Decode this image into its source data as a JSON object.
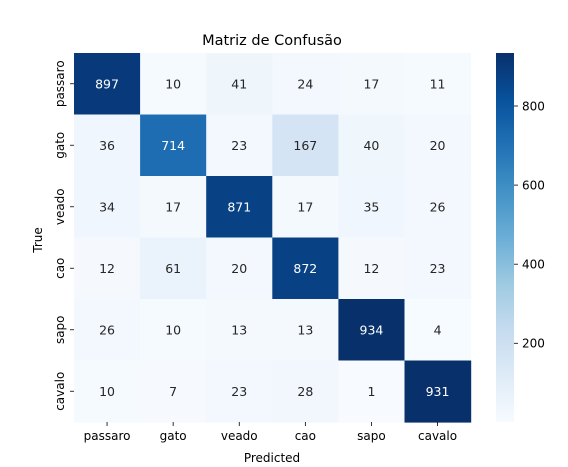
{
  "chart_data": {
    "type": "heatmap",
    "title": "Matriz de Confusão",
    "xlabel": "Predicted",
    "ylabel": "True",
    "x_categories": [
      "passaro",
      "gato",
      "veado",
      "cao",
      "sapo",
      "cavalo"
    ],
    "y_categories": [
      "passaro",
      "gato",
      "veado",
      "cao",
      "sapo",
      "cavalo"
    ],
    "values": [
      [
        897,
        10,
        41,
        24,
        17,
        11
      ],
      [
        36,
        714,
        23,
        167,
        40,
        20
      ],
      [
        34,
        17,
        871,
        17,
        35,
        26
      ],
      [
        12,
        61,
        20,
        872,
        12,
        23
      ],
      [
        26,
        10,
        13,
        13,
        934,
        4
      ],
      [
        10,
        7,
        23,
        28,
        1,
        931
      ]
    ],
    "colormap": "Blues",
    "colorbar": {
      "range": [
        1,
        934
      ],
      "ticks": [
        200,
        400,
        600,
        800
      ],
      "tick_labels": [
        "200",
        "400",
        "600",
        "800"
      ]
    },
    "annotation_dark_color": "#262626",
    "annotation_light_color": "#ffffff",
    "grid": false,
    "legend": "colorbar-right"
  }
}
